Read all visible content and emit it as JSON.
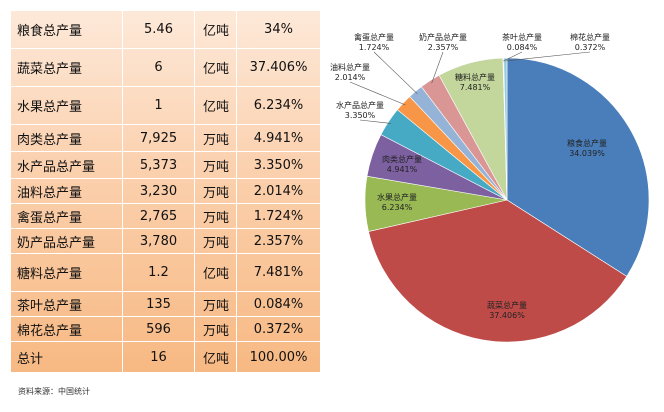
{
  "table": {
    "rows": [
      {
        "name": "粮食总产量",
        "value": "5.46",
        "unit": "亿吨",
        "percent": "34%"
      },
      {
        "name": "蔬菜总产量",
        "value": "6",
        "unit": "亿吨",
        "percent": "37.406%"
      },
      {
        "name": "水果总产量",
        "value": "1",
        "unit": "亿吨",
        "percent": "6.234%"
      },
      {
        "name": "肉类总产量",
        "value": "7,925",
        "unit": "万吨",
        "percent": "4.941%"
      },
      {
        "name": "水产品总产量",
        "value": "5,373",
        "unit": "万吨",
        "percent": "3.350%"
      },
      {
        "name": "油料总产量",
        "value": "3,230",
        "unit": "万吨",
        "percent": "2.014%"
      },
      {
        "name": "禽蛋总产量",
        "value": "2,765",
        "unit": "万吨",
        "percent": "1.724%"
      },
      {
        "name": "奶产品总产量",
        "value": "3,780",
        "unit": "万吨",
        "percent": "2.357%"
      },
      {
        "name": "糖料总产量",
        "value": "1.2",
        "unit": "亿吨",
        "percent": "7.481%"
      },
      {
        "name": "茶叶总产量",
        "value": "135",
        "unit": "万吨",
        "percent": "0.084%"
      },
      {
        "name": "棉花总产量",
        "value": "596",
        "unit": "万吨",
        "percent": "0.372%"
      },
      {
        "name": "总计",
        "value": "16",
        "unit": "亿吨",
        "percent": "100.00%"
      }
    ]
  },
  "source_note": "资料来源：中国统计",
  "chart_data": {
    "type": "pie",
    "slices": [
      {
        "name": "粮食总产量",
        "value": 34.039,
        "label": "34.039%",
        "color": "#4a7ebb"
      },
      {
        "name": "蔬菜总产量",
        "value": 37.406,
        "label": "37.406%",
        "color": "#be4b48"
      },
      {
        "name": "水果总产量",
        "value": 6.234,
        "label": "6.234%",
        "color": "#98b954"
      },
      {
        "name": "肉类总产量",
        "value": 4.941,
        "label": "4.941%",
        "color": "#7d60a0"
      },
      {
        "name": "水产品总产量",
        "value": 3.35,
        "label": "3.350%",
        "color": "#46aac5"
      },
      {
        "name": "油料总产量",
        "value": 2.014,
        "label": "2.014%",
        "color": "#f79646"
      },
      {
        "name": "禽蛋总产量",
        "value": 1.724,
        "label": "1.724%",
        "color": "#95b3d7"
      },
      {
        "name": "奶产品总产量",
        "value": 2.357,
        "label": "2.357%",
        "color": "#d99694"
      },
      {
        "name": "糖料总产量",
        "value": 7.481,
        "label": "7.481%",
        "color": "#c3d69b"
      },
      {
        "name": "茶叶总产量",
        "value": 0.084,
        "label": "0.084%",
        "color": "#b3a2c7"
      },
      {
        "name": "棉花总产量",
        "value": 0.372,
        "label": "0.372%",
        "color": "#93cddd"
      }
    ]
  }
}
